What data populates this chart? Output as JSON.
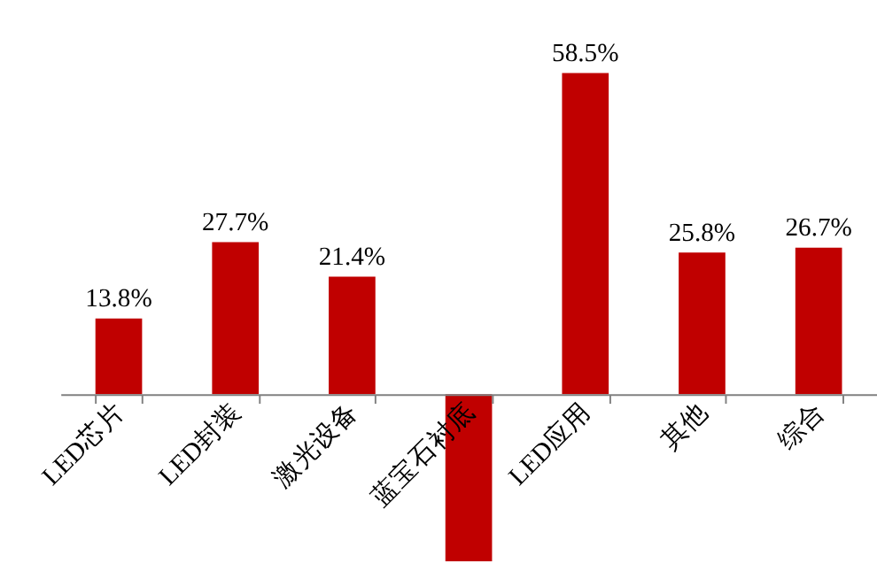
{
  "chart_data": {
    "type": "bar",
    "categories": [
      "LED芯片",
      "LED封装",
      "激光设备",
      "蓝宝石衬底",
      "LED应用",
      "其他",
      "综合"
    ],
    "values": [
      13.8,
      27.7,
      21.4,
      -30.4,
      58.5,
      25.8,
      26.7
    ],
    "value_labels": [
      "13.8%",
      "27.7%",
      "21.4%",
      null,
      "58.5%",
      "25.8%",
      "26.7%"
    ],
    "color": "#c00000",
    "grid": false
  }
}
